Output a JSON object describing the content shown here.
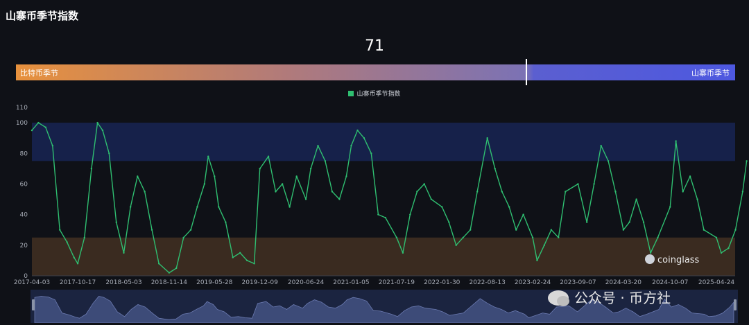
{
  "page": {
    "title": "山寨币季节指数"
  },
  "season_index": {
    "value": "71",
    "left_label": "比特币季节",
    "right_label": "山寨币季节",
    "fraction": 0.71
  },
  "watermarks": {
    "brand": "coinglass",
    "wechat": "公众号 · 币方社"
  },
  "colors": {
    "line": "#2fbf71",
    "altseason_zone": "#16214a",
    "bitcoin_zone": "#3a2b20",
    "gradient_start": "#e7913d",
    "gradient_end": "#4d58e0"
  },
  "icons": {
    "brand": "coinglass-logo-icon",
    "wechat": "wechat-icon",
    "handle": "slider-handle-icon"
  },
  "chart_data": {
    "type": "line",
    "title": "",
    "xlabel": "",
    "ylabel": "",
    "ylim": [
      0,
      110
    ],
    "yticks": [
      0,
      20,
      40,
      60,
      80,
      100,
      110
    ],
    "xticks": [
      "2017-04-03",
      "2017-10-17",
      "2018-05-03",
      "2018-11-14",
      "2019-05-28",
      "2019-12-09",
      "2020-06-24",
      "2021-01-05",
      "2021-07-19",
      "2022-01-30",
      "2022-08-13",
      "2023-02-24",
      "2023-09-07",
      "2024-03-20",
      "2024-10-07",
      "2025-04-24"
    ],
    "grid": false,
    "legend_position": "top-center",
    "bands": [
      {
        "from": 75,
        "to": 100,
        "color": "#16214a"
      },
      {
        "from": 0,
        "to": 25,
        "color": "#3a2b20"
      }
    ],
    "series": [
      {
        "name": "山寨币季节指数",
        "x": [
          "2017-04-03",
          "2017-05-01",
          "2017-06-01",
          "2017-07-01",
          "2017-08-01",
          "2017-09-01",
          "2017-10-01",
          "2017-10-17",
          "2017-11-15",
          "2017-12-15",
          "2018-01-10",
          "2018-02-01",
          "2018-03-01",
          "2018-04-01",
          "2018-05-03",
          "2018-06-01",
          "2018-07-01",
          "2018-08-01",
          "2018-09-01",
          "2018-10-01",
          "2018-11-14",
          "2018-12-15",
          "2019-01-15",
          "2019-02-15",
          "2019-03-15",
          "2019-04-15",
          "2019-05-01",
          "2019-05-28",
          "2019-06-15",
          "2019-07-15",
          "2019-08-15",
          "2019-09-15",
          "2019-10-15",
          "2019-11-15",
          "2019-12-09",
          "2020-01-15",
          "2020-02-15",
          "2020-03-15",
          "2020-04-15",
          "2020-05-15",
          "2020-06-24",
          "2020-07-15",
          "2020-08-15",
          "2020-09-15",
          "2020-10-15",
          "2020-11-15",
          "2020-12-15",
          "2021-01-05",
          "2021-02-01",
          "2021-03-01",
          "2021-04-01",
          "2021-05-01",
          "2021-06-01",
          "2021-07-19",
          "2021-08-15",
          "2021-09-15",
          "2021-10-15",
          "2021-11-15",
          "2021-12-15",
          "2022-01-30",
          "2022-03-01",
          "2022-04-01",
          "2022-05-01",
          "2022-06-01",
          "2022-07-01",
          "2022-08-13",
          "2022-09-15",
          "2022-10-15",
          "2022-11-15",
          "2022-12-15",
          "2023-01-15",
          "2023-02-24",
          "2023-03-15",
          "2023-04-15",
          "2023-05-15",
          "2023-06-15",
          "2023-07-15",
          "2023-09-07",
          "2023-10-15",
          "2023-11-15",
          "2023-12-15",
          "2024-01-15",
          "2024-02-15",
          "2024-03-20",
          "2024-04-15",
          "2024-05-15",
          "2024-06-15",
          "2024-07-15",
          "2024-08-15",
          "2024-10-07",
          "2024-11-01",
          "2024-12-01",
          "2025-01-01",
          "2025-02-01",
          "2025-03-01",
          "2025-04-24",
          "2025-05-15",
          "2025-06-15",
          "2025-07-15",
          "2025-08-15",
          "2025-09-01"
        ],
        "values": [
          95,
          100,
          97,
          85,
          30,
          22,
          12,
          8,
          25,
          70,
          100,
          95,
          80,
          35,
          15,
          45,
          65,
          55,
          30,
          8,
          2,
          5,
          25,
          30,
          45,
          60,
          78,
          65,
          45,
          35,
          12,
          15,
          10,
          8,
          70,
          78,
          55,
          60,
          45,
          65,
          50,
          70,
          85,
          75,
          55,
          50,
          65,
          85,
          95,
          90,
          80,
          40,
          38,
          25,
          15,
          40,
          55,
          60,
          50,
          45,
          35,
          20,
          25,
          30,
          55,
          90,
          70,
          55,
          45,
          30,
          40,
          25,
          10,
          20,
          30,
          25,
          55,
          60,
          35,
          60,
          85,
          75,
          55,
          30,
          35,
          50,
          35,
          15,
          25,
          45,
          88,
          55,
          65,
          50,
          30,
          25,
          15,
          18,
          30,
          55,
          75
        ]
      }
    ]
  }
}
